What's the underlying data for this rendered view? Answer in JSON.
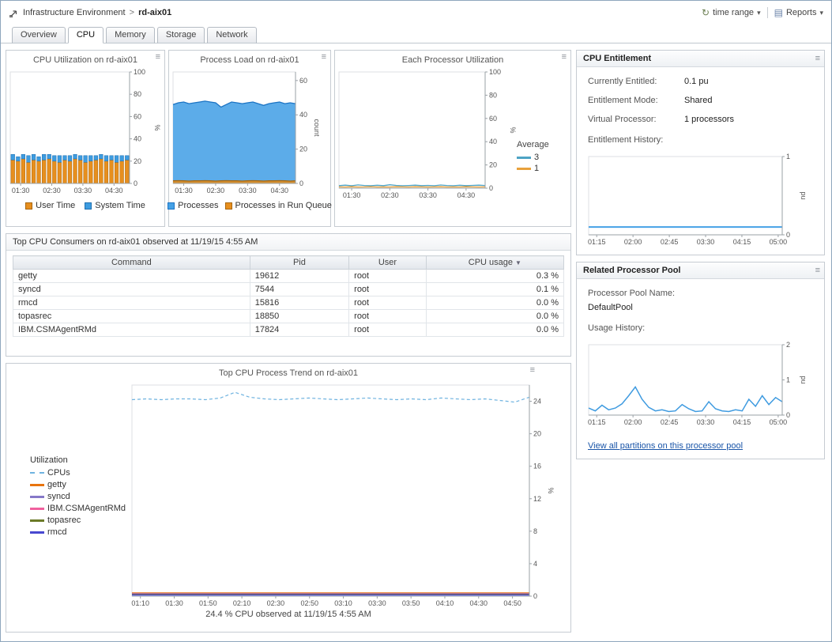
{
  "breadcrumb": {
    "root": "Infrastructure Environment",
    "separator": ">",
    "current": "rd-aix01"
  },
  "toolbar": {
    "time_range_label": "time range",
    "reports_label": "Reports"
  },
  "icons": {
    "dropdown": "▾",
    "menu": "≡",
    "time_range": "↻",
    "reports": "▤",
    "sort_desc": "▼"
  },
  "tabs": [
    {
      "label": "Overview"
    },
    {
      "label": "CPU"
    },
    {
      "label": "Memory"
    },
    {
      "label": "Storage"
    },
    {
      "label": "Network"
    }
  ],
  "active_tab": "CPU",
  "consumers": {
    "title": "Top CPU Consumers on rd-aix01 observed at 11/19/15 4:55 AM",
    "columns": [
      "Command",
      "Pid",
      "User",
      "CPU usage"
    ],
    "sort_column": "CPU usage",
    "rows": [
      {
        "command": "getty",
        "pid": "19612",
        "user": "root",
        "cpu": "0.3 %"
      },
      {
        "command": "syncd",
        "pid": "7544",
        "user": "root",
        "cpu": "0.1 %"
      },
      {
        "command": "rmcd",
        "pid": "15816",
        "user": "root",
        "cpu": "0.0 %"
      },
      {
        "command": "topasrec",
        "pid": "18850",
        "user": "root",
        "cpu": "0.0 %"
      },
      {
        "command": "IBM.CSMAgentRMd",
        "pid": "17824",
        "user": "root",
        "cpu": "0.0 %"
      }
    ]
  },
  "entitlement": {
    "title": "CPU Entitlement",
    "fields": [
      {
        "label": "Currently Entitled:",
        "value": "0.1 pu"
      },
      {
        "label": "Entitlement Mode:",
        "value": "Shared"
      },
      {
        "label": "Virtual Processor:",
        "value": "1 processors"
      }
    ],
    "history_label": "Entitlement History:"
  },
  "pool": {
    "title": "Related Processor Pool",
    "name_label": "Processor Pool Name:",
    "name_value": "DefaultPool",
    "usage_label": "Usage History:",
    "link": "View all partitions on this processor pool"
  },
  "trend_caption": "24.4 % CPU observed at 11/19/15 4:55 AM",
  "chart_data": {
    "cpu_utilization": {
      "type": "bar",
      "title": "CPU Utilization on rd-aix01",
      "x_domain": [
        "01:10",
        "05:00"
      ],
      "xticks": [
        "01:30",
        "02:30",
        "03:30",
        "04:30"
      ],
      "ylim": [
        0,
        100
      ],
      "yticks": [
        0,
        20,
        40,
        60,
        80,
        100
      ],
      "ylabel": "%",
      "series": [
        {
          "name": "User Time",
          "color": "#e78f1e",
          "stroke": "#a8660d",
          "values": [
            21,
            20,
            22,
            19,
            21,
            20,
            21,
            22,
            20,
            19,
            21,
            20,
            22,
            21,
            19,
            20,
            21,
            22,
            20,
            21,
            19,
            20,
            21
          ]
        },
        {
          "name": "System Time",
          "color": "#3d9ce0",
          "stroke": "#1f6fb0",
          "values": [
            5,
            4,
            4,
            6,
            5,
            4,
            5,
            4,
            5,
            6,
            4,
            5,
            4,
            4,
            6,
            5,
            4,
            4,
            5,
            4,
            6,
            5,
            4
          ]
        }
      ]
    },
    "process_load": {
      "type": "area",
      "title": "Process Load on rd-aix01",
      "x_domain": [
        "01:10",
        "05:00"
      ],
      "xticks": [
        "01:30",
        "02:30",
        "03:30",
        "04:30"
      ],
      "ylim": [
        0,
        65
      ],
      "yticks": [
        0,
        20,
        40,
        60
      ],
      "ylabel": "count",
      "series": [
        {
          "name": "Processes",
          "color": "#45a1e6",
          "stroke": "#1c74c4",
          "values": [
            46,
            47,
            47.5,
            46.5,
            47,
            47.5,
            48,
            47.5,
            47,
            44.5,
            46,
            47.5,
            47,
            46.5,
            47,
            47.5,
            46.5,
            45.5,
            46.5,
            47,
            47.5,
            46.5,
            47,
            46.5
          ]
        },
        {
          "name": "Processes in Run Queue",
          "color": "#e78f1e",
          "stroke": "#a8660d",
          "values": [
            1.5,
            1.6,
            1.5,
            1.4,
            1.5,
            1.5,
            1.6,
            1.5,
            1.4,
            1.5,
            1.6,
            1.5,
            1.5,
            1.4,
            1.5,
            1.6,
            1.5,
            1.4,
            1.5,
            1.5,
            1.6,
            1.5,
            1.4,
            1.5
          ]
        }
      ]
    },
    "each_processor": {
      "type": "line",
      "title": "Each Processor Utilization",
      "legend_title": "Average",
      "x_domain": [
        "01:10",
        "05:00"
      ],
      "xticks": [
        "01:30",
        "02:30",
        "03:30",
        "04:30"
      ],
      "ylim": [
        0,
        100
      ],
      "yticks": [
        0,
        20,
        40,
        60,
        80,
        100
      ],
      "ylabel": "%",
      "series": [
        {
          "name": "3",
          "color": "#4da3c4",
          "values": [
            2.2,
            2.6,
            2.1,
            2.8,
            2.3,
            2.1,
            2.5,
            2.2,
            2.9,
            2.4,
            2.1,
            2.3,
            2.6,
            2.2,
            2.4,
            2.1,
            2.7,
            2.3,
            2.1,
            2.5,
            2.2,
            2.4,
            2.6,
            2.3
          ]
        },
        {
          "name": "1",
          "color": "#e8a13c",
          "values": [
            1.1,
            1.0,
            1.2,
            1.0,
            1.1,
            1.3,
            1.0,
            1.1,
            1.0,
            1.2,
            1.1,
            1.0,
            1.2,
            1.1,
            1.0,
            1.1,
            1.2,
            1.0,
            1.1,
            1.0,
            1.2,
            1.1,
            1.0,
            1.1
          ]
        }
      ]
    },
    "entitlement_history": {
      "type": "line",
      "x_domain": [
        "01:05",
        "05:05"
      ],
      "xticks": [
        "01:15",
        "02:00",
        "02:45",
        "03:30",
        "04:15",
        "05:00"
      ],
      "ylim": [
        0,
        1
      ],
      "yticks": [
        0,
        1
      ],
      "ylabel": "pu",
      "series": [
        {
          "name": "Entitlement",
          "color": "#45a1e6",
          "width": 2,
          "values": [
            0.1,
            0.1
          ]
        }
      ]
    },
    "usage_history": {
      "type": "line",
      "x_domain": [
        "01:05",
        "05:05"
      ],
      "xticks": [
        "01:15",
        "02:00",
        "02:45",
        "03:30",
        "04:15",
        "05:00"
      ],
      "ylim": [
        0,
        2
      ],
      "yticks": [
        0,
        1,
        2
      ],
      "ylabel": "pu",
      "series": [
        {
          "name": "Usage",
          "color": "#3f9be0",
          "width": 1.5,
          "values": [
            0.2,
            0.12,
            0.28,
            0.15,
            0.2,
            0.32,
            0.55,
            0.8,
            0.45,
            0.22,
            0.12,
            0.15,
            0.1,
            0.12,
            0.3,
            0.18,
            0.1,
            0.12,
            0.38,
            0.18,
            0.12,
            0.1,
            0.15,
            0.12,
            0.45,
            0.25,
            0.55,
            0.3,
            0.5,
            0.38
          ]
        }
      ]
    },
    "trend": {
      "type": "line",
      "title": "Top CPU Process Trend on rd-aix01",
      "legend_title": "Utilization",
      "x_domain": [
        "01:05",
        "05:00"
      ],
      "xticks": [
        "01:10",
        "01:30",
        "01:50",
        "02:10",
        "02:30",
        "02:50",
        "03:10",
        "03:30",
        "03:50",
        "04:10",
        "04:30",
        "04:50"
      ],
      "ylim": [
        0,
        26
      ],
      "yticks": [
        0,
        4,
        8,
        12,
        16,
        20,
        24
      ],
      "ylabel": "%",
      "series": [
        {
          "name": "CPUs",
          "color": "#6fb3e0",
          "dash": "4,3",
          "width": 1.2,
          "values": [
            24.2,
            24.3,
            24.2,
            24.3,
            24.3,
            24.2,
            24.4,
            25.1,
            24.5,
            24.3,
            24.2,
            24.3,
            24.4,
            24.3,
            24.2,
            24.3,
            24.4,
            24.3,
            24.2,
            24.3,
            24.2,
            24.4,
            24.3,
            24.2,
            24.3,
            24.1,
            23.9,
            24.5
          ]
        },
        {
          "name": "getty",
          "color": "#e8740e",
          "width": 2.2,
          "values": [
            0.35,
            0.35
          ]
        },
        {
          "name": "syncd",
          "color": "#8678c8",
          "width": 1.5,
          "values": [
            0.3,
            0.3
          ]
        },
        {
          "name": "IBM.CSMAgentRMd",
          "color": "#f0609e",
          "width": 1.5,
          "values": [
            0.25,
            0.25
          ]
        },
        {
          "name": "topasrec",
          "color": "#6b7a28",
          "width": 1.5,
          "values": [
            0.2,
            0.2
          ]
        },
        {
          "name": "rmcd",
          "color": "#4848d0",
          "width": 1.5,
          "values": [
            0.15,
            0.15
          ]
        }
      ]
    }
  }
}
